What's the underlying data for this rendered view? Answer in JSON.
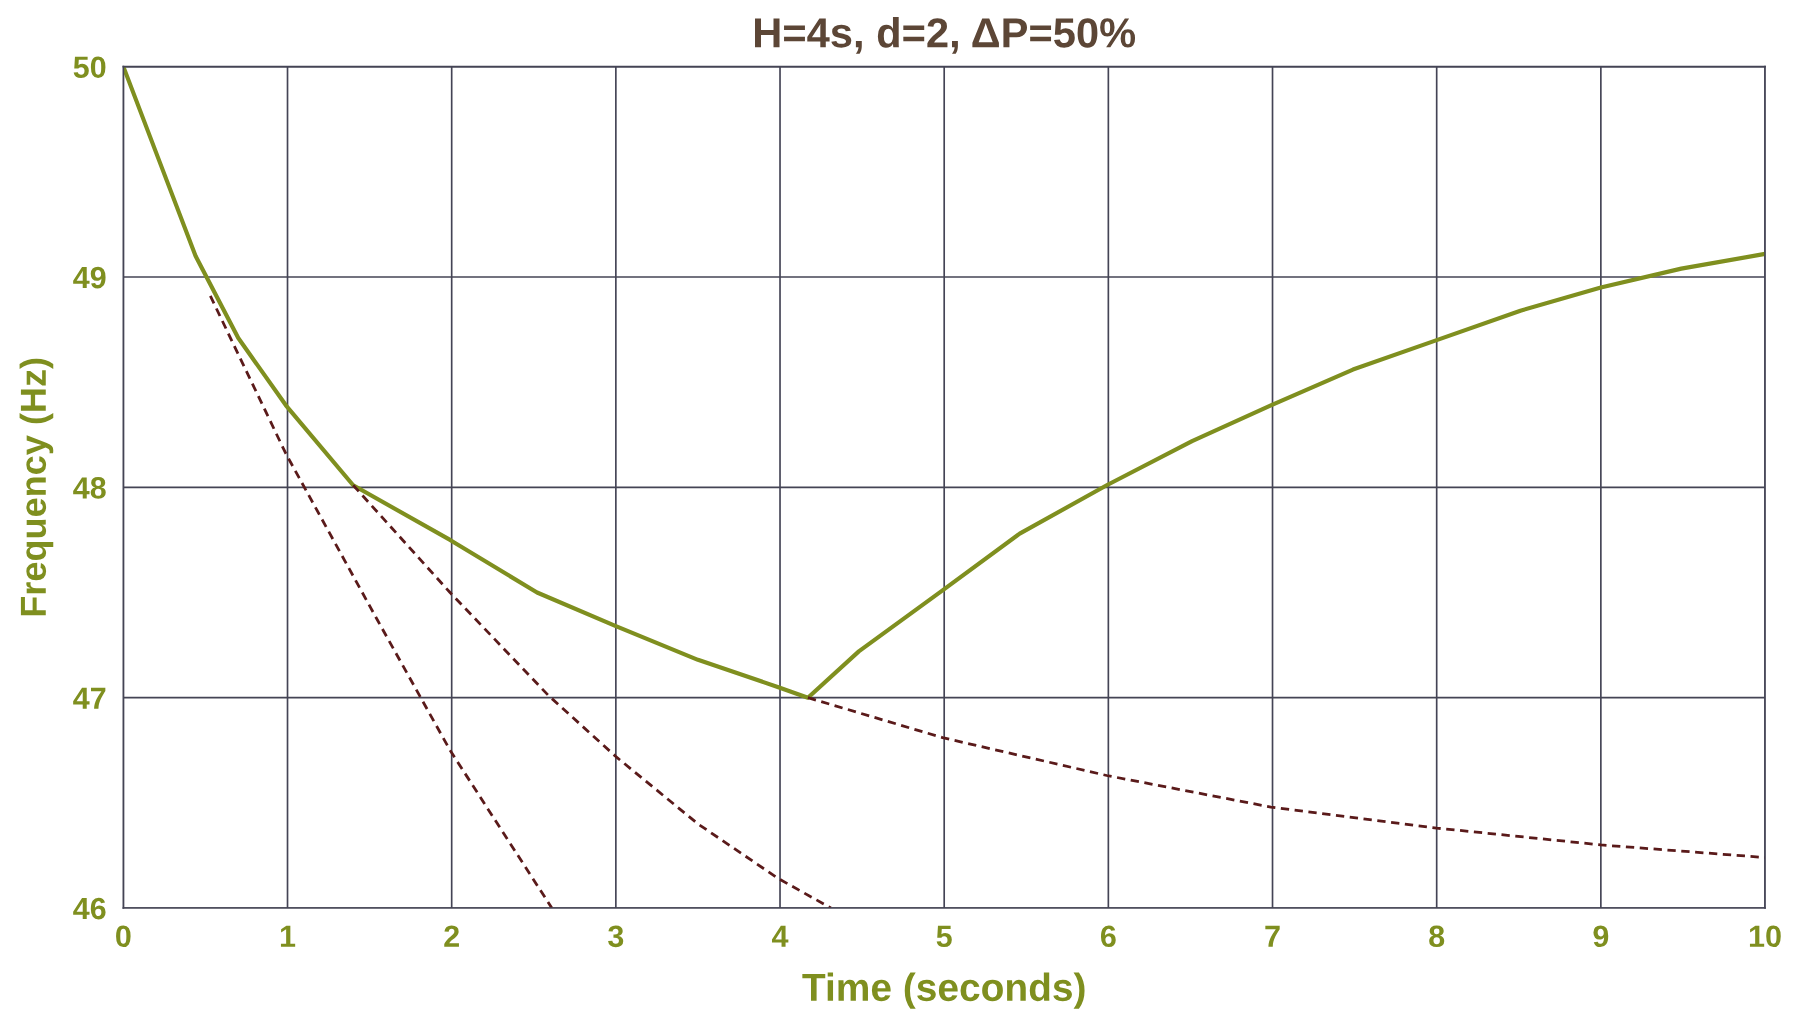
{
  "chart_data": {
    "type": "line",
    "title": "H=4s, d=2, ΔP=50%",
    "xlabel": "Time (seconds)",
    "ylabel": "Frequency (Hz)",
    "xlim": [
      0,
      10
    ],
    "ylim": [
      46,
      50
    ],
    "xticks": [
      0,
      1,
      2,
      3,
      4,
      5,
      6,
      7,
      8,
      9,
      10
    ],
    "yticks": [
      46,
      47,
      48,
      49,
      50
    ],
    "grid": true,
    "series": [
      {
        "color": "#7f8f1f",
        "line_style": "solid",
        "x": [
          0,
          0.21,
          0.44,
          0.7,
          0.99,
          1.4,
          1.99,
          2.52,
          3.0,
          3.5,
          3.99,
          4.17,
          4.48,
          4.99,
          5.46,
          5.99,
          6.51,
          6.99,
          7.49,
          8.0,
          8.51,
          9.0,
          9.49,
          10
        ],
        "values": [
          50,
          49.57,
          49.1,
          48.71,
          48.39,
          48.01,
          47.75,
          47.5,
          47.34,
          47.18,
          47.05,
          47.0,
          47.22,
          47.51,
          47.78,
          48.01,
          48.22,
          48.39,
          48.56,
          48.7,
          48.84,
          48.95,
          49.04,
          49.11
        ]
      },
      {
        "color": "#5a1a1a",
        "line_style": "dashed",
        "x": [
          0.53,
          0.99,
          1.54,
          1.99,
          2.61
        ],
        "values": [
          48.91,
          48.16,
          47.38,
          46.75,
          46.0
        ]
      },
      {
        "color": "#5a1a1a",
        "line_style": "dashed",
        "x": [
          1.4,
          1.99,
          2.59,
          3.0,
          3.5,
          3.99,
          4.31
        ],
        "values": [
          48.01,
          47.5,
          47.01,
          46.72,
          46.4,
          46.14,
          46.0
        ]
      },
      {
        "color": "#5a1a1a",
        "line_style": "dashed",
        "x": [
          4.17,
          4.99,
          5.99,
          6.99,
          8.0,
          9.0,
          10
        ],
        "values": [
          47.0,
          46.81,
          46.63,
          46.48,
          46.38,
          46.3,
          46.24
        ]
      }
    ]
  }
}
